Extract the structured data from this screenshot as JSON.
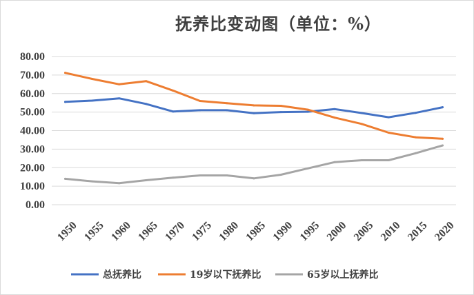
{
  "chart_data": {
    "type": "line",
    "title": "抚养比变动图（单位：%）",
    "categories": [
      "1950",
      "1955",
      "1960",
      "1965",
      "1970",
      "1975",
      "1980",
      "1985",
      "1990",
      "1995",
      "2000",
      "2005",
      "2010",
      "2015",
      "2020"
    ],
    "ylim": [
      0,
      80
    ],
    "yticks": [
      "0.00",
      "10.00",
      "20.00",
      "30.00",
      "40.00",
      "50.00",
      "60.00",
      "70.00",
      "80.00"
    ],
    "grid": true,
    "legend_position": "bottom",
    "series": [
      {
        "name": "总抚养比",
        "color": "#4472C4",
        "values": [
          55.5,
          56.2,
          57.4,
          54.4,
          50.3,
          51.0,
          51.0,
          49.4,
          50.0,
          50.2,
          51.6,
          49.5,
          47.2,
          49.6,
          52.6
        ]
      },
      {
        "name": "19岁以下抚养比",
        "color": "#ED7D31",
        "values": [
          71.2,
          67.9,
          65.0,
          66.7,
          61.6,
          56.0,
          54.8,
          53.6,
          53.4,
          51.3,
          47.0,
          43.6,
          38.9,
          36.4,
          35.6
        ]
      },
      {
        "name": "65岁以上抚养比",
        "color": "#A5A5A5",
        "values": [
          14.0,
          12.6,
          11.6,
          13.2,
          14.6,
          15.8,
          15.8,
          14.2,
          16.2,
          19.6,
          23.0,
          24.0,
          24.0,
          27.8,
          32.0
        ]
      }
    ]
  }
}
